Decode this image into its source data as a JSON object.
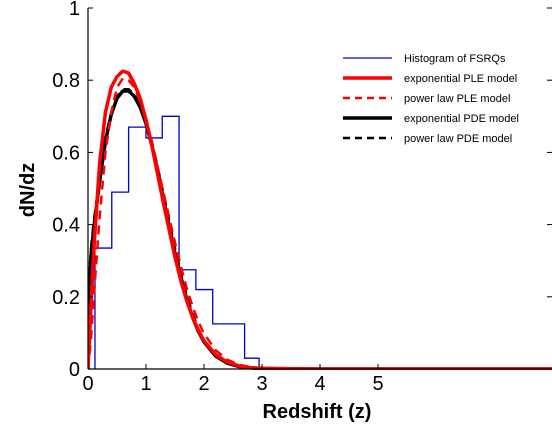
{
  "chart_data": {
    "type": "line",
    "title": "",
    "xlabel": "Redshift (z)",
    "ylabel": "dN/dz",
    "xlim": [
      0,
      8
    ],
    "ylim": [
      0,
      1
    ],
    "xticks": [
      0,
      1,
      2,
      3,
      4,
      5
    ],
    "xtick_labels": [
      "0",
      "1",
      "2",
      "3",
      "4",
      "5"
    ],
    "yticks": [
      0,
      0.2,
      0.4,
      0.6,
      0.8,
      1
    ],
    "ytick_labels": [
      "0",
      "0.2",
      "0.4",
      "0.6",
      "0.8",
      "1"
    ],
    "grid": false,
    "legend_position": "top-right",
    "histogram": {
      "name": "Histogram of FSRQs",
      "color": "#0000cc",
      "bin_edges": [
        0.12,
        0.41,
        0.7,
        1.0,
        1.28,
        1.57,
        1.86,
        2.15,
        2.7,
        2.95,
        8.0
      ],
      "counts": [
        0.335,
        0.49,
        0.67,
        0.64,
        0.7,
        0.275,
        0.22,
        0.125,
        0.03,
        0.0
      ]
    },
    "series": [
      {
        "name": "exponential PLE model",
        "color": "#ff0000",
        "style": "solid",
        "width": 3.5,
        "x": [
          0,
          0.05,
          0.1,
          0.2,
          0.3,
          0.4,
          0.5,
          0.6,
          0.7,
          0.8,
          0.9,
          1.0,
          1.1,
          1.2,
          1.3,
          1.4,
          1.5,
          1.6,
          1.7,
          1.8,
          1.9,
          2.0,
          2.2,
          2.4,
          2.6,
          2.8,
          3.0,
          3.5,
          4.0,
          5.0,
          6.0,
          8.0
        ],
        "y": [
          0,
          0.17,
          0.33,
          0.57,
          0.71,
          0.78,
          0.81,
          0.825,
          0.82,
          0.79,
          0.75,
          0.69,
          0.62,
          0.54,
          0.46,
          0.385,
          0.31,
          0.245,
          0.19,
          0.145,
          0.108,
          0.078,
          0.04,
          0.019,
          0.009,
          0.004,
          0.002,
          0.0005,
          0.0,
          0.0,
          0.0,
          0.0
        ]
      },
      {
        "name": "power law PLE model",
        "color": "#ff0000",
        "style": "dashed",
        "width": 2.5,
        "x": [
          0,
          0.05,
          0.1,
          0.2,
          0.3,
          0.4,
          0.5,
          0.6,
          0.7,
          0.8,
          0.9,
          1.0,
          1.1,
          1.2,
          1.3,
          1.4,
          1.5,
          1.6,
          1.7,
          1.8,
          1.9,
          2.0,
          2.2,
          2.4,
          2.6,
          2.8,
          3.0,
          3.5,
          4.0,
          5.0,
          6.0,
          8.0
        ],
        "y": [
          0,
          0.08,
          0.2,
          0.42,
          0.6,
          0.71,
          0.78,
          0.805,
          0.8,
          0.78,
          0.74,
          0.69,
          0.63,
          0.56,
          0.49,
          0.42,
          0.35,
          0.285,
          0.225,
          0.175,
          0.132,
          0.098,
          0.052,
          0.026,
          0.012,
          0.005,
          0.002,
          0.0005,
          0.0,
          0.0,
          0.0,
          0.0
        ]
      },
      {
        "name": "exponential PDE model",
        "color": "#000000",
        "style": "solid",
        "width": 3.5,
        "x": [
          0,
          0.03,
          0.06,
          0.1,
          0.2,
          0.3,
          0.4,
          0.5,
          0.6,
          0.7,
          0.8,
          0.9,
          1.0,
          1.1,
          1.2,
          1.3,
          1.4,
          1.5,
          1.6,
          1.7,
          1.8,
          1.9,
          2.0,
          2.2,
          2.4,
          2.6,
          2.8,
          3.0,
          3.5,
          4.0,
          5.0,
          6.0,
          8.0
        ],
        "y": [
          0,
          0.25,
          0.33,
          0.39,
          0.52,
          0.63,
          0.705,
          0.75,
          0.77,
          0.77,
          0.755,
          0.725,
          0.68,
          0.62,
          0.55,
          0.47,
          0.395,
          0.32,
          0.255,
          0.195,
          0.145,
          0.105,
          0.075,
          0.036,
          0.016,
          0.007,
          0.003,
          0.0012,
          0.0002,
          0.0,
          0.0,
          0.0,
          0.0
        ]
      },
      {
        "name": "power law PDE model",
        "color": "#000000",
        "style": "dashed",
        "width": 2.5,
        "x": [
          0,
          0.03,
          0.06,
          0.1,
          0.2,
          0.3,
          0.4,
          0.5,
          0.6,
          0.7,
          0.8,
          0.9,
          1.0,
          1.1,
          1.2,
          1.3,
          1.4,
          1.5,
          1.6,
          1.7,
          1.8,
          1.9,
          2.0,
          2.2,
          2.4,
          2.6,
          2.8,
          3.0,
          3.5,
          4.0,
          5.0,
          6.0,
          8.0
        ],
        "y": [
          0,
          0.28,
          0.35,
          0.41,
          0.53,
          0.64,
          0.71,
          0.755,
          0.775,
          0.775,
          0.76,
          0.73,
          0.69,
          0.63,
          0.56,
          0.485,
          0.41,
          0.335,
          0.265,
          0.205,
          0.155,
          0.112,
          0.08,
          0.038,
          0.017,
          0.0075,
          0.003,
          0.0012,
          0.0002,
          0.0,
          0.0,
          0.0,
          0.0
        ]
      }
    ]
  }
}
